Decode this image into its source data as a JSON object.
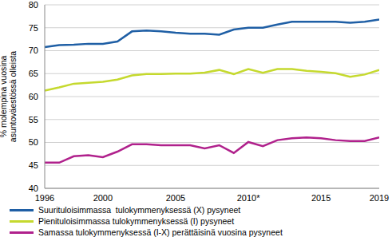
{
  "chart_data": {
    "type": "line",
    "y_label": "% molempina vuosina asuntoväestössä olleista",
    "x": [
      1996,
      1997,
      1998,
      1999,
      2000,
      2001,
      2002,
      2003,
      2004,
      2005,
      2006,
      2007,
      2008,
      2009,
      2010,
      2011,
      2012,
      2013,
      2014,
      2015,
      2016,
      2017,
      2018,
      2019
    ],
    "series": [
      {
        "name": "Suurituloisimmassa  tulokymmenyksessä (X) pysyneet",
        "color": "#1f5fa5",
        "values": [
          70.8,
          71.2,
          71.3,
          71.5,
          71.5,
          72.0,
          74.2,
          74.4,
          74.2,
          73.9,
          73.7,
          73.7,
          73.5,
          74.6,
          75.0,
          75.0,
          75.7,
          76.3,
          76.3,
          76.3,
          76.3,
          76.1,
          76.3,
          76.8
        ]
      },
      {
        "name": "Pienituloisimmassa tulokymmenyksessä (I) pysyneet",
        "color": "#c5d92e",
        "values": [
          61.3,
          62.0,
          62.8,
          63.0,
          63.2,
          63.7,
          64.6,
          64.9,
          64.9,
          65.0,
          65.0,
          65.2,
          65.8,
          64.9,
          66.0,
          65.2,
          66.0,
          66.0,
          65.6,
          65.4,
          65.1,
          64.3,
          64.8,
          65.8
        ]
      },
      {
        "name": "Samassa tulokymmenyksessä (I-X) perättäisinä vuosina pysyneet",
        "color": "#b0218c",
        "values": [
          45.6,
          45.6,
          47.0,
          47.2,
          46.8,
          48.0,
          49.6,
          49.6,
          49.4,
          49.4,
          49.4,
          48.7,
          49.4,
          47.7,
          50.1,
          49.2,
          50.5,
          50.9,
          51.1,
          50.9,
          50.5,
          50.3,
          50.3,
          51.1
        ]
      }
    ],
    "xlim": [
      1996,
      2019
    ],
    "xticks": [
      1996,
      2000,
      2005,
      {
        "value": 2010,
        "label": "2010*"
      },
      2015,
      2019
    ],
    "ylim": [
      40,
      80
    ],
    "yticks": [
      40,
      45,
      50,
      55,
      60,
      65,
      70,
      75,
      80
    ],
    "grid": true,
    "legend": "bottom"
  }
}
